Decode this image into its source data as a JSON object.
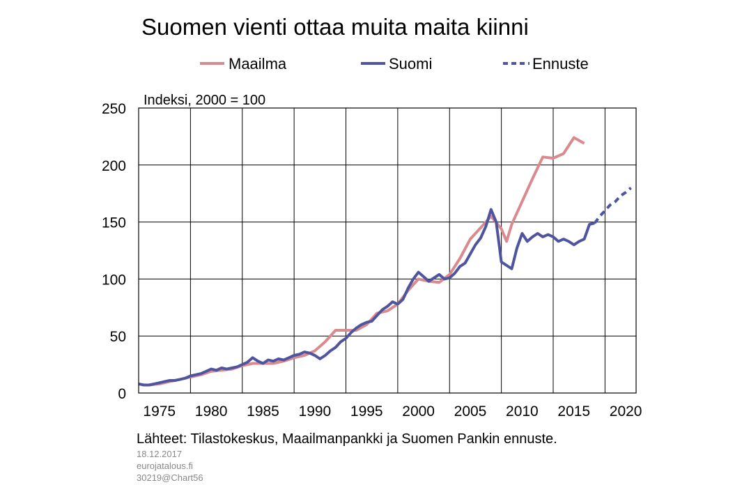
{
  "chart_data": {
    "type": "line",
    "title": "Suomen vienti ottaa muita maita kiinni",
    "ylabel": "Indeksi, 2000 = 100",
    "xlabel": "",
    "xlim": [
      1973,
      2021
    ],
    "ylim": [
      0,
      250
    ],
    "x_ticks": [
      "1975",
      "1980",
      "1985",
      "1990",
      "1995",
      "2000",
      "2005",
      "2010",
      "2015",
      "2020"
    ],
    "y_ticks": [
      "0",
      "50",
      "100",
      "150",
      "200",
      "250"
    ],
    "grid": true,
    "legend_position": "top",
    "series": [
      {
        "name": "Maailma",
        "color": "#d98a8e",
        "style": "solid",
        "points": [
          [
            1974.0,
            7
          ],
          [
            1975.0,
            8
          ],
          [
            1976.0,
            10
          ],
          [
            1977.0,
            12
          ],
          [
            1978.0,
            14
          ],
          [
            1979.0,
            16
          ],
          [
            1980.0,
            19
          ],
          [
            1981.0,
            20
          ],
          [
            1982.0,
            21
          ],
          [
            1983.0,
            24
          ],
          [
            1984.0,
            26
          ],
          [
            1985.0,
            26
          ],
          [
            1986.0,
            26
          ],
          [
            1987.0,
            28
          ],
          [
            1988.0,
            31
          ],
          [
            1989.0,
            33
          ],
          [
            1990.0,
            37
          ],
          [
            1991.0,
            45
          ],
          [
            1992.0,
            55
          ],
          [
            1993.0,
            55
          ],
          [
            1994.0,
            55
          ],
          [
            1995.0,
            60
          ],
          [
            1996.0,
            70
          ],
          [
            1997.0,
            72
          ],
          [
            1998.0,
            78
          ],
          [
            1999.0,
            90
          ],
          [
            2000.0,
            100
          ],
          [
            2001.0,
            98
          ],
          [
            2002.0,
            97
          ],
          [
            2003.0,
            104
          ],
          [
            2004.0,
            118
          ],
          [
            2005.0,
            135
          ],
          [
            2006.0,
            145
          ],
          [
            2007.0,
            155
          ],
          [
            2008.0,
            144
          ],
          [
            2008.5,
            133
          ],
          [
            2009.0,
            148
          ],
          [
            2010.0,
            168
          ],
          [
            2011.0,
            188
          ],
          [
            2012.0,
            207
          ],
          [
            2013.0,
            206
          ],
          [
            2014.0,
            210
          ],
          [
            2015.0,
            224
          ],
          [
            2016.0,
            219
          ]
        ]
      },
      {
        "name": "Suomi",
        "color": "#4f549e",
        "style": "solid",
        "points": [
          [
            1973.0,
            8
          ],
          [
            1973.5,
            7
          ],
          [
            1974.0,
            7
          ],
          [
            1974.5,
            8
          ],
          [
            1975.0,
            9
          ],
          [
            1975.5,
            10
          ],
          [
            1976.0,
            11
          ],
          [
            1976.5,
            11
          ],
          [
            1977.0,
            12
          ],
          [
            1977.5,
            13
          ],
          [
            1978.0,
            15
          ],
          [
            1978.5,
            16
          ],
          [
            1979.0,
            17
          ],
          [
            1979.5,
            19
          ],
          [
            1980.0,
            21
          ],
          [
            1980.5,
            20
          ],
          [
            1981.0,
            22
          ],
          [
            1981.5,
            21
          ],
          [
            1982.0,
            22
          ],
          [
            1982.5,
            23
          ],
          [
            1983.0,
            25
          ],
          [
            1983.5,
            27
          ],
          [
            1984.0,
            31
          ],
          [
            1984.5,
            28
          ],
          [
            1985.0,
            26
          ],
          [
            1985.5,
            29
          ],
          [
            1986.0,
            28
          ],
          [
            1986.5,
            30
          ],
          [
            1987.0,
            29
          ],
          [
            1987.5,
            31
          ],
          [
            1988.0,
            33
          ],
          [
            1988.5,
            34
          ],
          [
            1989.0,
            36
          ],
          [
            1989.5,
            35
          ],
          [
            1990.0,
            33
          ],
          [
            1990.5,
            30
          ],
          [
            1991.0,
            33
          ],
          [
            1991.5,
            37
          ],
          [
            1992.0,
            40
          ],
          [
            1992.5,
            45
          ],
          [
            1993.0,
            48
          ],
          [
            1993.5,
            53
          ],
          [
            1994.0,
            57
          ],
          [
            1994.5,
            60
          ],
          [
            1995.0,
            62
          ],
          [
            1995.5,
            63
          ],
          [
            1996.0,
            68
          ],
          [
            1996.5,
            73
          ],
          [
            1997.0,
            76
          ],
          [
            1997.5,
            80
          ],
          [
            1998.0,
            78
          ],
          [
            1998.5,
            82
          ],
          [
            1999.0,
            92
          ],
          [
            1999.5,
            100
          ],
          [
            2000.0,
            106
          ],
          [
            2000.5,
            102
          ],
          [
            2001.0,
            98
          ],
          [
            2001.5,
            101
          ],
          [
            2002.0,
            104
          ],
          [
            2002.5,
            100
          ],
          [
            2003.0,
            101
          ],
          [
            2003.5,
            105
          ],
          [
            2004.0,
            111
          ],
          [
            2004.5,
            114
          ],
          [
            2005.0,
            122
          ],
          [
            2005.5,
            130
          ],
          [
            2006.0,
            136
          ],
          [
            2006.5,
            146
          ],
          [
            2007.0,
            161
          ],
          [
            2007.5,
            150
          ],
          [
            2008.0,
            115
          ],
          [
            2008.5,
            112
          ],
          [
            2009.0,
            109
          ],
          [
            2009.5,
            127
          ],
          [
            2010.0,
            140
          ],
          [
            2010.5,
            133
          ],
          [
            2011.0,
            137
          ],
          [
            2011.5,
            140
          ],
          [
            2012.0,
            137
          ],
          [
            2012.5,
            139
          ],
          [
            2013.0,
            137
          ],
          [
            2013.5,
            133
          ],
          [
            2014.0,
            135
          ],
          [
            2014.5,
            133
          ],
          [
            2015.0,
            130
          ],
          [
            2015.5,
            133
          ],
          [
            2016.0,
            135
          ],
          [
            2016.5,
            148
          ],
          [
            2017.0,
            149
          ]
        ]
      },
      {
        "name": "Ennuste",
        "color": "#4f549e",
        "style": "dashed",
        "points": [
          [
            2017.0,
            149
          ],
          [
            2017.5,
            155
          ],
          [
            2018.0,
            160
          ],
          [
            2018.5,
            165
          ],
          [
            2019.0,
            168
          ],
          [
            2019.5,
            173
          ],
          [
            2020.0,
            176
          ],
          [
            2020.5,
            180
          ]
        ]
      }
    ],
    "source": "Lähteet: Tilastokeskus, Maailmanpankki ja Suomen Pankin ennuste.",
    "date": "18.12.2017",
    "site": "eurojatalous.fi",
    "code": "30219@Chart56"
  }
}
